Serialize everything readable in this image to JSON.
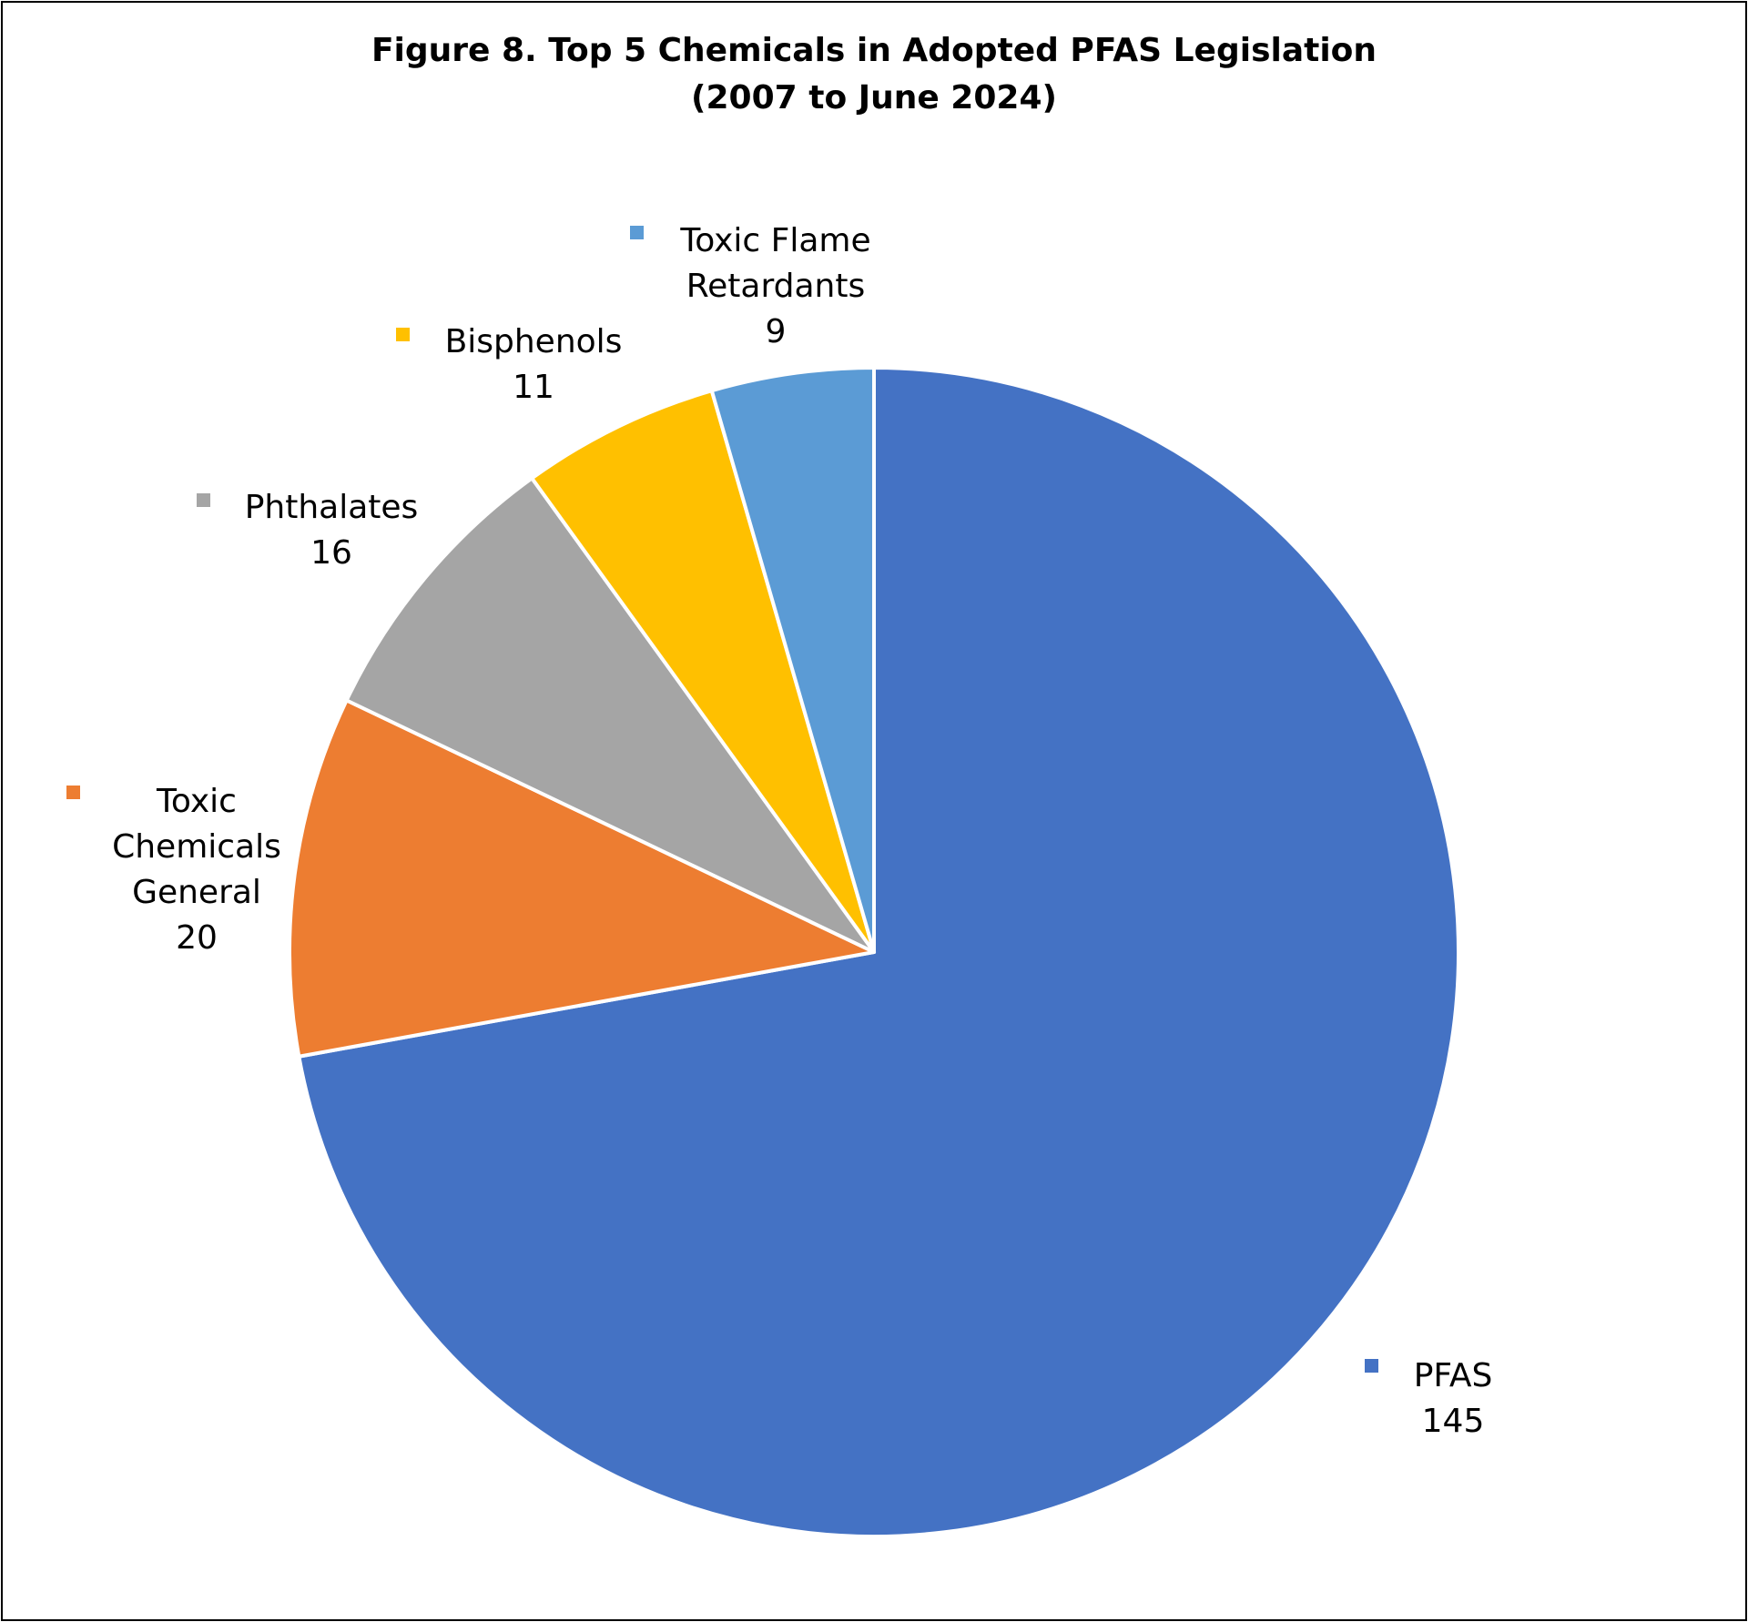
{
  "chart_data": {
    "type": "pie",
    "title": "Figure 8. Top 5 Chemicals in Adopted PFAS Legislation",
    "subtitle": "(2007 to June 2024)",
    "categories": [
      "PFAS",
      "Toxic Chemicals General",
      "Phthalates",
      "Bisphenols",
      "Toxic Flame Retardants"
    ],
    "values": [
      145,
      20,
      16,
      11,
      9
    ],
    "colors": [
      "#4472C4",
      "#ED7D31",
      "#A5A5A5",
      "#FFC000",
      "#5B9BD5"
    ],
    "label_lines": [
      [
        "PFAS"
      ],
      [
        "Toxic",
        "Chemicals",
        "General"
      ],
      [
        "Phthalates"
      ],
      [
        "Bisphenols"
      ],
      [
        "Toxic Flame",
        "Retardants"
      ]
    ],
    "value_labels": [
      "145",
      "20",
      "16",
      "11",
      "9"
    ],
    "start_angle_deg": 0,
    "direction": "clockwise",
    "legend": "none"
  }
}
